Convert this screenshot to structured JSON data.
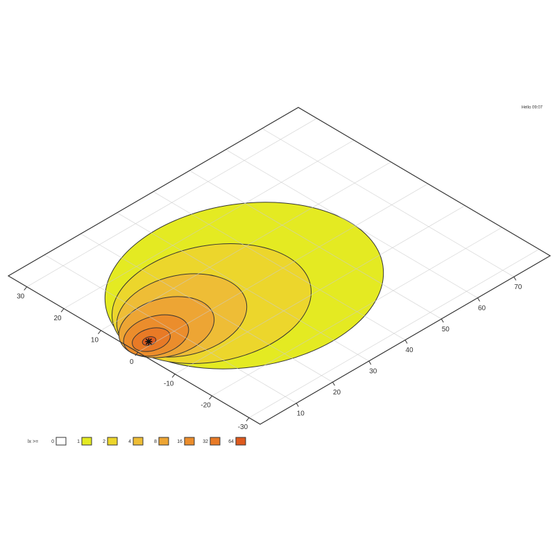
{
  "chart_data": {
    "type": "contour",
    "stamp": "Hello 09:07",
    "xlim": [
      0,
      80
    ],
    "xticks": [
      10,
      20,
      30,
      40,
      50,
      60,
      70
    ],
    "ylim": [
      -33,
      35
    ],
    "yticks": [
      -30,
      -20,
      -10,
      0,
      10,
      20,
      30
    ],
    "grid": true,
    "marker": [
      4,
      1
    ],
    "legend_title": "lx >=",
    "levels": [
      0,
      1,
      2,
      4,
      8,
      16,
      32,
      64
    ],
    "level_colors": [
      "#ffffff",
      "#e4ea22",
      "#ecd62c",
      "#eebd36",
      "#eda534",
      "#eb8d2c",
      "#e87a26",
      "#de5a1e"
    ]
  }
}
